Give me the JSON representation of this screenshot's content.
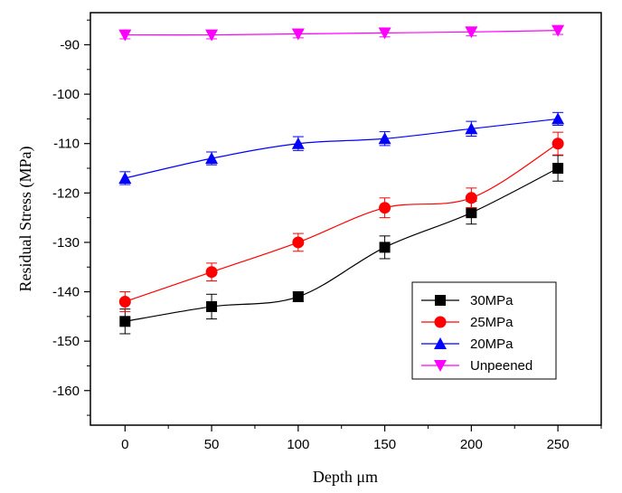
{
  "chart_data": {
    "type": "line",
    "xlabel": "Depth μm",
    "ylabel": "Residual Stress (MPa)",
    "x": [
      0,
      50,
      100,
      150,
      200,
      250
    ],
    "xlim": [
      -20,
      275
    ],
    "ylim": [
      -167,
      -83.5
    ],
    "x_ticks": [
      "0",
      "50",
      "100",
      "150",
      "200",
      "250"
    ],
    "y_ticks": [
      "-90",
      "-100",
      "-110",
      "-120",
      "-130",
      "-140",
      "-150",
      "-160"
    ],
    "grid": false,
    "legend_position": "bottom-right",
    "series": [
      {
        "name": "30MPa",
        "color": "#000000",
        "marker": "square",
        "values": [
          -146,
          -143,
          -141,
          -131,
          -124,
          -115
        ],
        "errors": [
          2.5,
          2.5,
          1.0,
          2.3,
          2.3,
          2.6
        ]
      },
      {
        "name": "25MPa",
        "color": "#ff0000",
        "marker": "circle",
        "values": [
          -142,
          -136,
          -130,
          -123,
          -121,
          -110
        ],
        "errors": [
          2.0,
          1.8,
          1.8,
          2.0,
          2.0,
          2.3
        ]
      },
      {
        "name": "20MPa",
        "color": "#0000ff",
        "marker": "triangle-up",
        "values": [
          -117,
          -113,
          -110,
          -109,
          -107,
          -105
        ],
        "errors": [
          1.3,
          1.3,
          1.4,
          1.4,
          1.5,
          1.3
        ]
      },
      {
        "name": "Unpeened",
        "color": "#ff00ff",
        "marker": "triangle-down",
        "values": [
          -88,
          -88,
          -87.8,
          -87.6,
          -87.4,
          -87.1
        ],
        "errors": [
          0.8,
          0.8,
          0.8,
          0.8,
          0.8,
          0.8
        ]
      }
    ]
  }
}
